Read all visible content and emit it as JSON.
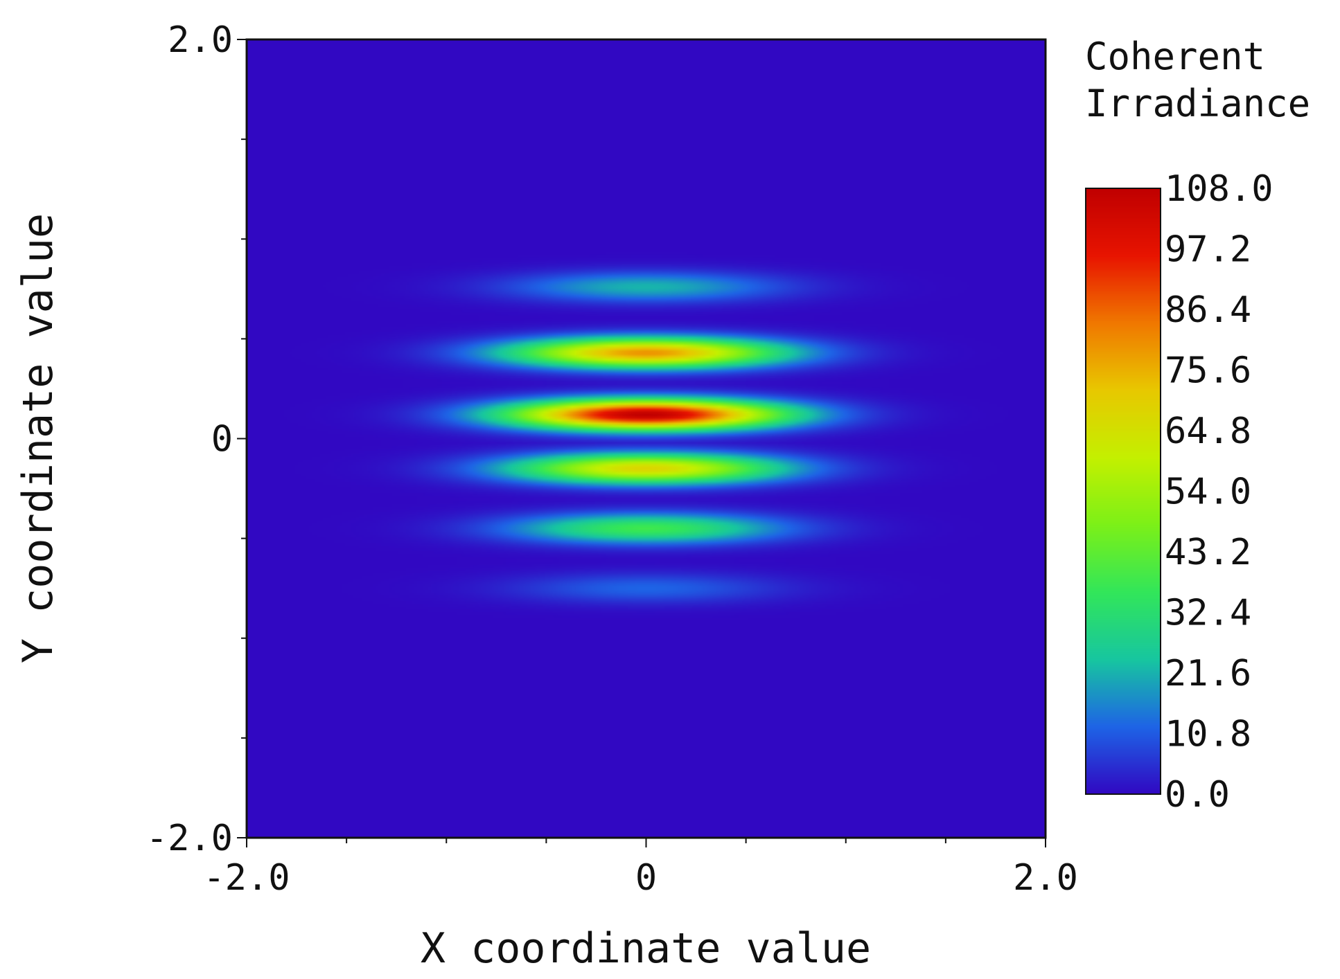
{
  "chart_data": {
    "type": "heatmap",
    "title": "",
    "xlabel": "X coordinate value",
    "ylabel": "Y coordinate value",
    "xlim": [
      -2.0,
      2.0
    ],
    "ylim": [
      -2.0,
      2.0
    ],
    "x_tick_labels": [
      "-2.0",
      "0",
      "2.0"
    ],
    "y_tick_labels": [
      "2.0",
      "0",
      "-2.0"
    ],
    "x_tick_values": [
      -2.0,
      0,
      2.0
    ],
    "y_tick_values": [
      2.0,
      0,
      -2.0
    ],
    "colorbar": {
      "title_lines": [
        "Coherent",
        "Irradiance"
      ],
      "min": 0.0,
      "max": 108.0,
      "tick_labels": [
        "108.0",
        "97.2",
        "86.4",
        "75.6",
        "64.8",
        "54.0",
        "43.2",
        "32.4",
        "21.6",
        "10.8",
        "0.0"
      ],
      "colormap": [
        "#3108c2",
        "#1e64e6",
        "#17c6a0",
        "#32e65a",
        "#7cf018",
        "#c4f000",
        "#e8c800",
        "#f07800",
        "#e81400",
        "#c00000"
      ]
    },
    "fringes": {
      "description_centers_y": [
        0.76,
        0.43,
        0.12,
        -0.15,
        -0.45,
        -0.75
      ],
      "peak_values": [
        22,
        80,
        108,
        68,
        38,
        12
      ],
      "peak_x": 0.0,
      "x_half_width": 0.85,
      "y_half_width": 0.11
    },
    "background_color": "#3108c2",
    "grid": false
  }
}
